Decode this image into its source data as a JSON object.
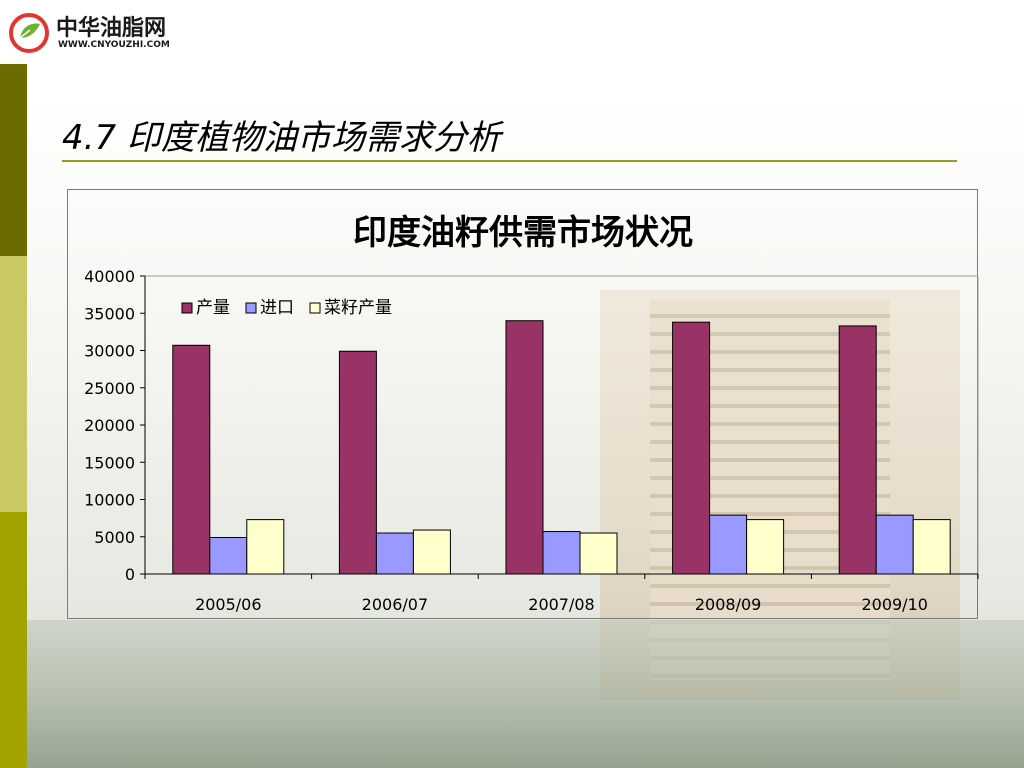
{
  "logo": {
    "name_cn": "中华油脂网",
    "url_text": "WWW.CNYOUZHI.COM"
  },
  "slide": {
    "title": "4.7 印度植物油市场需求分析"
  },
  "colors": {
    "series_1": "#993366",
    "series_2": "#9999ff",
    "series_3": "#ffffcc",
    "accent_strip_dark": "#6b6b00",
    "accent_strip_light": "#c9c964",
    "title_rule": "#9a9a20"
  },
  "chart_data": {
    "type": "bar",
    "title": "印度油籽供需市场状况",
    "categories": [
      "2005/06",
      "2006/07",
      "2007/08",
      "2008/09",
      "2009/10"
    ],
    "series": [
      {
        "name": "产量",
        "values": [
          30700,
          29900,
          34000,
          33800,
          33300
        ]
      },
      {
        "name": "进口",
        "values": [
          4900,
          5500,
          5700,
          7900,
          7900
        ]
      },
      {
        "name": "菜籽产量",
        "values": [
          7300,
          5900,
          5500,
          7300,
          7300
        ]
      }
    ],
    "yticks": [
      "0",
      "5000",
      "10000",
      "15000",
      "20000",
      "25000",
      "30000",
      "35000",
      "40000"
    ],
    "ylim": [
      0,
      40000
    ],
    "legend_position": "top-left",
    "grid": false
  }
}
